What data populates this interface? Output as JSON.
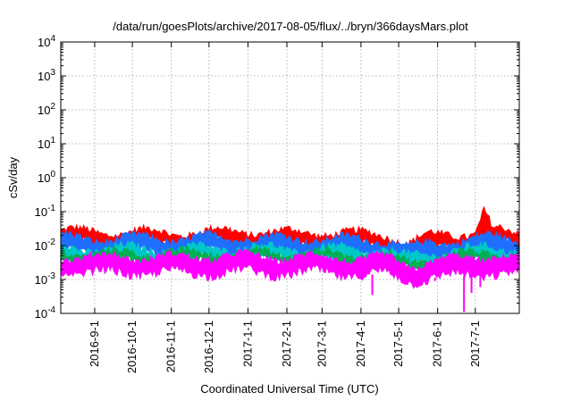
{
  "chart_data": {
    "type": "area",
    "title": "/data/run/goesPlots/archive/2017-08-05/flux/../bryn/366daysMars.plot",
    "xlabel": "Coordinated Universal Time (UTC)",
    "ylabel": "cSv/day",
    "yscale": "log",
    "ylim_exponents": [
      -4,
      4
    ],
    "y_tick_exponents": [
      -4,
      -3,
      -2,
      -1,
      0,
      1,
      2,
      3,
      4
    ],
    "y_tick_base": "10",
    "xlim": [
      "2016-08-05",
      "2017-08-05"
    ],
    "x_ticks": [
      {
        "date": "2016-09-01",
        "label": "2016-9-1"
      },
      {
        "date": "2016-10-01",
        "label": "2016-10-1"
      },
      {
        "date": "2016-11-01",
        "label": "2016-11-1"
      },
      {
        "date": "2016-12-01",
        "label": "2016-12-1"
      },
      {
        "date": "2017-01-01",
        "label": "2017-1-1"
      },
      {
        "date": "2017-02-01",
        "label": "2017-2-1"
      },
      {
        "date": "2017-03-01",
        "label": "2017-3-1"
      },
      {
        "date": "2017-04-01",
        "label": "2017-4-1"
      },
      {
        "date": "2017-05-01",
        "label": "2017-5-1"
      },
      {
        "date": "2017-06-01",
        "label": "2017-6-1"
      },
      {
        "date": "2017-07-01",
        "label": "2017-7-1"
      }
    ],
    "grid": true,
    "series_colors": [
      "#ff0000",
      "#1f6fff",
      "#00c8c8",
      "#00b050",
      "#ff00ff"
    ],
    "series": [
      {
        "color": "#ff0000",
        "x": [
          "2016-08-05",
          "2016-09-01",
          "2016-10-01",
          "2016-11-01",
          "2016-12-01",
          "2017-01-01",
          "2017-02-01",
          "2017-03-01",
          "2017-04-01",
          "2017-04-20",
          "2017-05-10",
          "2017-05-25",
          "2017-06-10",
          "2017-07-01",
          "2017-07-08",
          "2017-07-15",
          "2017-08-05"
        ],
        "upper": [
          0.028,
          0.025,
          0.026,
          0.024,
          0.026,
          0.027,
          0.024,
          0.025,
          0.022,
          0.022,
          0.012,
          0.02,
          0.022,
          0.024,
          0.11,
          0.028,
          0.024
        ],
        "lower": [
          0.012,
          0.011,
          0.011,
          0.01,
          0.011,
          0.011,
          0.01,
          0.011,
          0.009,
          0.009,
          0.005,
          0.008,
          0.009,
          0.01,
          0.012,
          0.011,
          0.01
        ]
      },
      {
        "color": "#1f6fff",
        "x": [
          "2016-08-05",
          "2016-09-01",
          "2016-10-01",
          "2016-11-01",
          "2016-12-01",
          "2017-01-01",
          "2017-02-01",
          "2017-03-01",
          "2017-04-01",
          "2017-04-20",
          "2017-05-10",
          "2017-05-25",
          "2017-06-10",
          "2017-07-01",
          "2017-07-15",
          "2017-08-05"
        ],
        "upper": [
          0.018,
          0.016,
          0.017,
          0.016,
          0.017,
          0.018,
          0.016,
          0.016,
          0.015,
          0.015,
          0.008,
          0.012,
          0.014,
          0.016,
          0.018,
          0.016
        ],
        "lower": [
          0.006,
          0.006,
          0.006,
          0.0055,
          0.006,
          0.006,
          0.0055,
          0.006,
          0.005,
          0.005,
          0.0028,
          0.004,
          0.0045,
          0.005,
          0.006,
          0.0055
        ]
      },
      {
        "color": "#00c8c8",
        "x": [
          "2016-08-05",
          "2016-09-01",
          "2016-10-01",
          "2016-11-01",
          "2016-12-01",
          "2017-01-01",
          "2017-02-01",
          "2017-03-01",
          "2017-04-01",
          "2017-04-20",
          "2017-05-10",
          "2017-05-25",
          "2017-06-10",
          "2017-07-01",
          "2017-07-15",
          "2017-08-05"
        ],
        "upper": [
          0.009,
          0.008,
          0.0085,
          0.008,
          0.0085,
          0.009,
          0.008,
          0.008,
          0.0075,
          0.0075,
          0.0045,
          0.006,
          0.007,
          0.008,
          0.009,
          0.008
        ],
        "lower": [
          0.0045,
          0.004,
          0.0042,
          0.004,
          0.0042,
          0.0045,
          0.004,
          0.004,
          0.0037,
          0.0037,
          0.0022,
          0.003,
          0.0034,
          0.004,
          0.0045,
          0.004
        ]
      },
      {
        "color": "#00b050",
        "x": [
          "2016-08-05",
          "2016-09-01",
          "2016-10-01",
          "2016-11-01",
          "2016-12-01",
          "2017-01-01",
          "2017-02-01",
          "2017-03-01",
          "2017-04-01",
          "2017-04-20",
          "2017-05-10",
          "2017-05-25",
          "2017-06-10",
          "2017-07-01",
          "2017-07-15",
          "2017-08-05"
        ],
        "upper": [
          0.0065,
          0.006,
          0.0062,
          0.006,
          0.0062,
          0.0065,
          0.006,
          0.006,
          0.0055,
          0.0055,
          0.0033,
          0.0045,
          0.0052,
          0.006,
          0.0065,
          0.006
        ],
        "lower": [
          0.0038,
          0.0035,
          0.0036,
          0.0034,
          0.0036,
          0.0038,
          0.0034,
          0.0035,
          0.0032,
          0.0032,
          0.0019,
          0.0026,
          0.003,
          0.0034,
          0.0038,
          0.0034
        ]
      },
      {
        "color": "#ff00ff",
        "x": [
          "2016-08-05",
          "2016-09-01",
          "2016-10-01",
          "2016-11-01",
          "2016-12-01",
          "2017-01-01",
          "2017-02-01",
          "2017-03-01",
          "2017-04-01",
          "2017-04-20",
          "2017-05-10",
          "2017-05-25",
          "2017-06-10",
          "2017-07-01",
          "2017-07-15",
          "2017-08-05"
        ],
        "upper": [
          0.005,
          0.0045,
          0.0047,
          0.0045,
          0.0047,
          0.005,
          0.0045,
          0.0045,
          0.0042,
          0.0042,
          0.0025,
          0.0034,
          0.0038,
          0.0044,
          0.005,
          0.0045
        ],
        "lower": [
          0.0016,
          0.0015,
          0.0016,
          0.0015,
          0.0016,
          0.0016,
          0.0015,
          0.0015,
          0.0014,
          0.0014,
          0.0009,
          0.0011,
          0.0012,
          0.0013,
          0.0016,
          0.0014
        ],
        "dips": [
          {
            "date": "2017-04-10",
            "value": 0.00035
          },
          {
            "date": "2017-05-08",
            "value": 0.0007
          },
          {
            "date": "2017-05-30",
            "value": 0.0009
          },
          {
            "date": "2017-06-22",
            "value": 0.00011
          },
          {
            "date": "2017-06-28",
            "value": 0.0004
          },
          {
            "date": "2017-07-05",
            "value": 0.0006
          }
        ]
      }
    ]
  }
}
